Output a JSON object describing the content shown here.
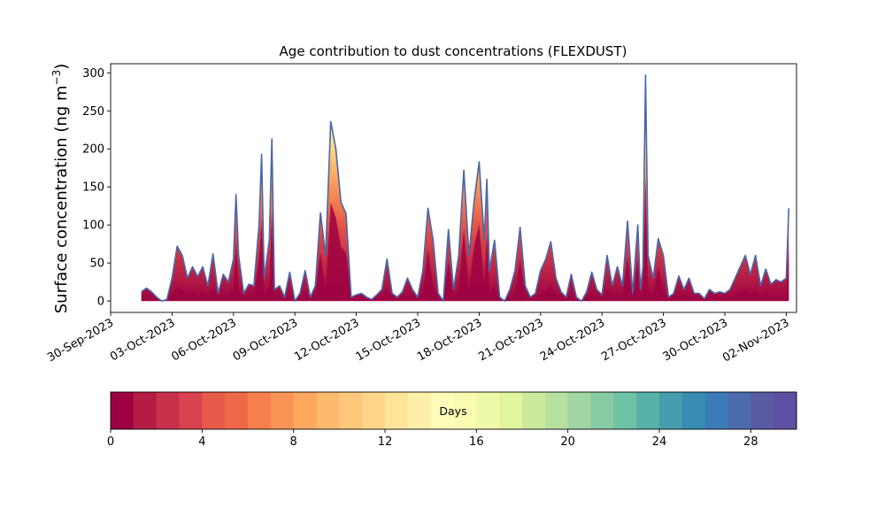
{
  "chart_data": {
    "type": "area",
    "title": "Age contribution to dust concentrations (FLEXDUST)",
    "ylabel": "Surface concentration (ng m",
    "ylabel_sup": "−3",
    "ylabel_close": ")",
    "xlabel": "",
    "ylim": [
      -15,
      312
    ],
    "xlim": [
      "2023-09-30T00:00",
      "2023-11-02T12:00"
    ],
    "yticks": [
      0,
      50,
      100,
      150,
      200,
      250,
      300
    ],
    "xticks": [
      "2023-09-30",
      "2023-10-03",
      "2023-10-06",
      "2023-10-09",
      "2023-10-12",
      "2023-10-15",
      "2023-10-18",
      "2023-10-21",
      "2023-10-24",
      "2023-10-27",
      "2023-10-30",
      "2023-11-02"
    ],
    "xtick_labels": [
      "30-Sep-2023",
      "03-Oct-2023",
      "06-Oct-2023",
      "09-Oct-2023",
      "12-Oct-2023",
      "15-Oct-2023",
      "18-Oct-2023",
      "21-Oct-2023",
      "24-Oct-2023",
      "27-Oct-2023",
      "30-Oct-2023",
      "02-Nov-2023"
    ],
    "grid": false,
    "total_series": {
      "name": "",
      "color": "#4a67a8",
      "points": [
        [
          "2023-10-01T12:00",
          12
        ],
        [
          "2023-10-01T18:00",
          17
        ],
        [
          "2023-10-02T00:00",
          12
        ],
        [
          "2023-10-02T06:00",
          5
        ],
        [
          "2023-10-02T12:00",
          0
        ],
        [
          "2023-10-02T18:00",
          2
        ],
        [
          "2023-10-03T00:00",
          30
        ],
        [
          "2023-10-03T06:00",
          72
        ],
        [
          "2023-10-03T12:00",
          60
        ],
        [
          "2023-10-03T18:00",
          30
        ],
        [
          "2023-10-04T00:00",
          45
        ],
        [
          "2023-10-04T06:00",
          32
        ],
        [
          "2023-10-04T12:00",
          45
        ],
        [
          "2023-10-04T18:00",
          20
        ],
        [
          "2023-10-05T00:00",
          62
        ],
        [
          "2023-10-05T06:00",
          10
        ],
        [
          "2023-10-05T12:00",
          35
        ],
        [
          "2023-10-05T18:00",
          25
        ],
        [
          "2023-10-06T00:00",
          55
        ],
        [
          "2023-10-06T03:00",
          140
        ],
        [
          "2023-10-06T06:00",
          60
        ],
        [
          "2023-10-06T12:00",
          10
        ],
        [
          "2023-10-06T18:00",
          22
        ],
        [
          "2023-10-07T00:00",
          20
        ],
        [
          "2023-10-07T06:00",
          100
        ],
        [
          "2023-10-07T09:00",
          193
        ],
        [
          "2023-10-07T12:00",
          30
        ],
        [
          "2023-10-07T18:00",
          80
        ],
        [
          "2023-10-07T21:00",
          213
        ],
        [
          "2023-10-08T00:00",
          15
        ],
        [
          "2023-10-08T06:00",
          20
        ],
        [
          "2023-10-08T12:00",
          5
        ],
        [
          "2023-10-08T18:00",
          38
        ],
        [
          "2023-10-09T00:00",
          0
        ],
        [
          "2023-10-09T06:00",
          10
        ],
        [
          "2023-10-09T12:00",
          40
        ],
        [
          "2023-10-09T18:00",
          5
        ],
        [
          "2023-10-10T00:00",
          20
        ],
        [
          "2023-10-10T06:00",
          116
        ],
        [
          "2023-10-10T12:00",
          60
        ],
        [
          "2023-10-10T18:00",
          236
        ],
        [
          "2023-10-11T00:00",
          200
        ],
        [
          "2023-10-11T06:00",
          130
        ],
        [
          "2023-10-11T12:00",
          115
        ],
        [
          "2023-10-11T18:00",
          5
        ],
        [
          "2023-10-12T00:00",
          8
        ],
        [
          "2023-10-12T06:00",
          10
        ],
        [
          "2023-10-12T12:00",
          5
        ],
        [
          "2023-10-12T18:00",
          2
        ],
        [
          "2023-10-13T00:00",
          8
        ],
        [
          "2023-10-13T06:00",
          15
        ],
        [
          "2023-10-13T12:00",
          55
        ],
        [
          "2023-10-13T18:00",
          10
        ],
        [
          "2023-10-14T00:00",
          5
        ],
        [
          "2023-10-14T06:00",
          12
        ],
        [
          "2023-10-14T12:00",
          30
        ],
        [
          "2023-10-14T18:00",
          15
        ],
        [
          "2023-10-15T00:00",
          5
        ],
        [
          "2023-10-15T06:00",
          40
        ],
        [
          "2023-10-15T12:00",
          122
        ],
        [
          "2023-10-15T18:00",
          80
        ],
        [
          "2023-10-16T00:00",
          10
        ],
        [
          "2023-10-16T06:00",
          0
        ],
        [
          "2023-10-16T12:00",
          94
        ],
        [
          "2023-10-16T18:00",
          15
        ],
        [
          "2023-10-17T00:00",
          60
        ],
        [
          "2023-10-17T06:00",
          172
        ],
        [
          "2023-10-17T12:00",
          60
        ],
        [
          "2023-10-17T18:00",
          130
        ],
        [
          "2023-10-18T00:00",
          183
        ],
        [
          "2023-10-18T06:00",
          80
        ],
        [
          "2023-10-18T09:00",
          160
        ],
        [
          "2023-10-18T12:00",
          40
        ],
        [
          "2023-10-18T18:00",
          80
        ],
        [
          "2023-10-19T00:00",
          5
        ],
        [
          "2023-10-19T06:00",
          0
        ],
        [
          "2023-10-19T12:00",
          15
        ],
        [
          "2023-10-19T18:00",
          40
        ],
        [
          "2023-10-20T00:00",
          97
        ],
        [
          "2023-10-20T06:00",
          20
        ],
        [
          "2023-10-20T12:00",
          5
        ],
        [
          "2023-10-20T18:00",
          10
        ],
        [
          "2023-10-21T00:00",
          40
        ],
        [
          "2023-10-21T06:00",
          55
        ],
        [
          "2023-10-21T12:00",
          78
        ],
        [
          "2023-10-21T18:00",
          30
        ],
        [
          "2023-10-22T00:00",
          12
        ],
        [
          "2023-10-22T06:00",
          5
        ],
        [
          "2023-10-22T12:00",
          35
        ],
        [
          "2023-10-22T18:00",
          5
        ],
        [
          "2023-10-23T00:00",
          0
        ],
        [
          "2023-10-23T06:00",
          12
        ],
        [
          "2023-10-23T12:00",
          38
        ],
        [
          "2023-10-23T18:00",
          15
        ],
        [
          "2023-10-24T00:00",
          8
        ],
        [
          "2023-10-24T06:00",
          60
        ],
        [
          "2023-10-24T12:00",
          20
        ],
        [
          "2023-10-24T18:00",
          45
        ],
        [
          "2023-10-25T00:00",
          20
        ],
        [
          "2023-10-25T06:00",
          105
        ],
        [
          "2023-10-25T12:00",
          10
        ],
        [
          "2023-10-25T18:00",
          100
        ],
        [
          "2023-10-25T21:00",
          15
        ],
        [
          "2023-10-26T00:00",
          45
        ],
        [
          "2023-10-26T03:00",
          297
        ],
        [
          "2023-10-26T06:00",
          60
        ],
        [
          "2023-10-26T12:00",
          30
        ],
        [
          "2023-10-26T18:00",
          82
        ],
        [
          "2023-10-27T00:00",
          60
        ],
        [
          "2023-10-27T06:00",
          5
        ],
        [
          "2023-10-27T12:00",
          10
        ],
        [
          "2023-10-27T18:00",
          33
        ],
        [
          "2023-10-28T00:00",
          15
        ],
        [
          "2023-10-28T06:00",
          30
        ],
        [
          "2023-10-28T12:00",
          10
        ],
        [
          "2023-10-28T18:00",
          10
        ],
        [
          "2023-10-29T00:00",
          3
        ],
        [
          "2023-10-29T06:00",
          15
        ],
        [
          "2023-10-29T12:00",
          10
        ],
        [
          "2023-10-29T18:00",
          12
        ],
        [
          "2023-10-30T00:00",
          10
        ],
        [
          "2023-10-30T06:00",
          15
        ],
        [
          "2023-10-30T12:00",
          30
        ],
        [
          "2023-10-30T18:00",
          45
        ],
        [
          "2023-10-31T00:00",
          60
        ],
        [
          "2023-10-31T06:00",
          35
        ],
        [
          "2023-10-31T12:00",
          60
        ],
        [
          "2023-10-31T18:00",
          20
        ],
        [
          "2023-11-01T00:00",
          42
        ],
        [
          "2023-11-01T06:00",
          22
        ],
        [
          "2023-11-01T12:00",
          28
        ],
        [
          "2023-11-01T18:00",
          25
        ],
        [
          "2023-11-02T00:00",
          30
        ],
        [
          "2023-11-02T03:00",
          122
        ]
      ]
    },
    "colorbar": {
      "label": "Days",
      "range": [
        0,
        30
      ],
      "ticks": [
        0,
        4,
        8,
        12,
        16,
        20,
        24,
        28
      ],
      "colors": [
        "#9e0142",
        "#b41c44",
        "#c9304a",
        "#d9424e",
        "#e75b4a",
        "#ee6a46",
        "#f67f4b",
        "#f99455",
        "#fca85f",
        "#fdba6c",
        "#fec87a",
        "#fed68a",
        "#fee49a",
        "#feefa8",
        "#fffbb8",
        "#f8fcb2",
        "#effaa8",
        "#e1f59d",
        "#ccea9e",
        "#b6e09f",
        "#9fd6a3",
        "#86cba4",
        "#6ec2a5",
        "#58b1a8",
        "#459dad",
        "#378db2",
        "#3b7cb8",
        "#4b6bad",
        "#5a5aa4",
        "#5e4fa2"
      ]
    }
  }
}
